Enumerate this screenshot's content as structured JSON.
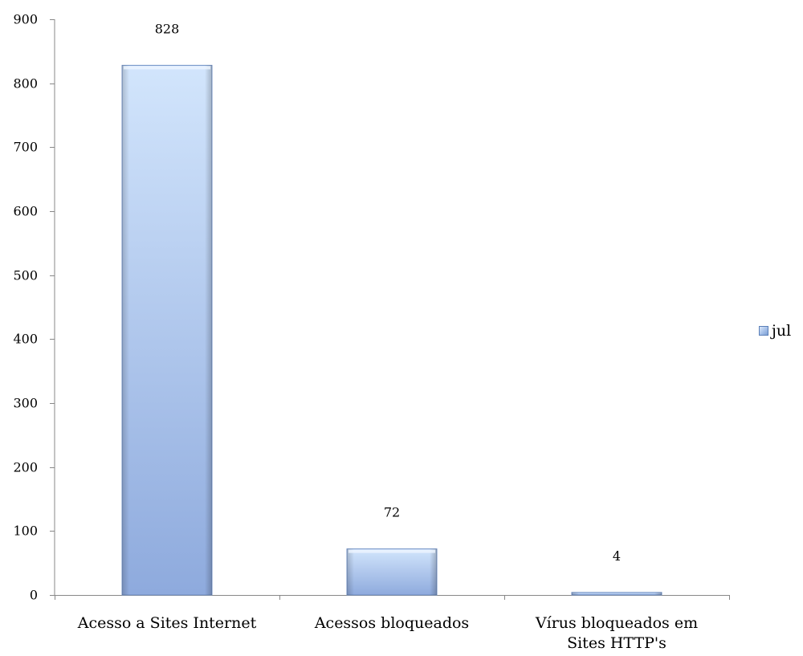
{
  "chart_data": {
    "type": "bar",
    "categories": [
      [
        "Acesso a Sites Internet"
      ],
      [
        "Acessos bloqueados"
      ],
      [
        "Vírus bloqueados em",
        "Sites HTTP's"
      ]
    ],
    "series": [
      {
        "name": "jul",
        "values": [
          828,
          72,
          4
        ]
      }
    ],
    "data_labels": [
      "828",
      "72",
      "4"
    ],
    "ylim": [
      0,
      900
    ],
    "yticks": [
      0,
      100,
      200,
      300,
      400,
      500,
      600,
      700,
      800,
      900
    ],
    "title": "",
    "xlabel": "",
    "ylabel": "",
    "grid": false,
    "legend_position": "right",
    "colors": {
      "bar_light": "#cde0fb",
      "bar_dark": "#8eaadd",
      "bar_edge": "#6f8fc4",
      "axis": "#888888"
    }
  },
  "legend": {
    "label": "jul",
    "icon": "bar-swatch"
  }
}
